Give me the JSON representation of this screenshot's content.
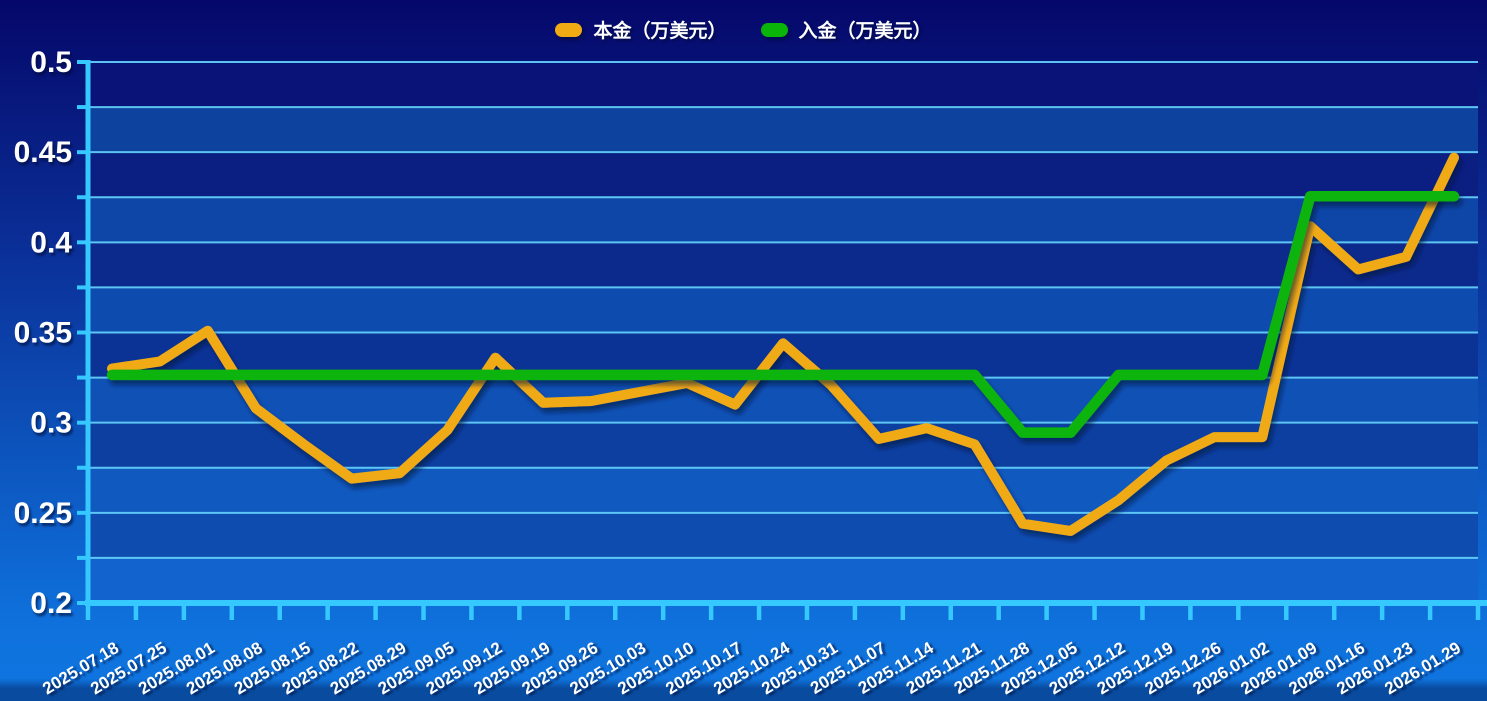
{
  "legend": {
    "items": [
      {
        "label": "本金（万美元）"
      },
      {
        "label": "入金（万美元）"
      }
    ]
  },
  "chart_data": {
    "type": "line",
    "title": "",
    "xlabel": "",
    "ylabel": "",
    "categories": [
      "2025.07.18",
      "2025.07.25",
      "2025.08.01",
      "2025.08.08",
      "2025.08.15",
      "2025.08.22",
      "2025.08.29",
      "2025.09.05",
      "2025.09.12",
      "2025.09.19",
      "2025.09.26",
      "2025.10.03",
      "2025.10.10",
      "2025.10.17",
      "2025.10.24",
      "2025.10.31",
      "2025.11.07",
      "2025.11.14",
      "2025.11.21",
      "2025.11.28",
      "2025.12.05",
      "2025.12.12",
      "2025.12.19",
      "2025.12.26",
      "2026.01.02",
      "2026.01.09",
      "2026.01.16",
      "2026.01.23",
      "2026.01.29"
    ],
    "series": [
      {
        "name": "本金（万美元）",
        "color": "#F0AA14",
        "values": [
          0.33,
          0.334,
          0.351,
          0.308,
          0.288,
          0.269,
          0.272,
          0.296,
          0.336,
          0.311,
          0.312,
          0.317,
          0.322,
          0.31,
          0.344,
          0.321,
          0.291,
          0.297,
          0.288,
          0.244,
          0.24,
          0.257,
          0.279,
          0.292,
          0.292,
          0.409,
          0.385,
          0.392,
          0.447
        ]
      },
      {
        "name": "入金（万美元）",
        "color": "#0AB408",
        "values": [
          0.3265,
          0.3265,
          0.3265,
          0.3265,
          0.3265,
          0.3265,
          0.3265,
          0.3265,
          0.3265,
          0.3265,
          0.3265,
          0.3265,
          0.3265,
          0.3265,
          0.3265,
          0.3265,
          0.3265,
          0.3265,
          0.3265,
          0.2945,
          0.2945,
          0.3265,
          0.3265,
          0.3265,
          0.3265,
          0.4255,
          0.4255,
          0.4255,
          0.4255
        ]
      }
    ],
    "ylim": [
      0.2,
      0.5
    ],
    "ytick_labels": [
      "0.5",
      "0.45",
      "0.4",
      "0.35",
      "0.3",
      "0.25",
      "0.2"
    ],
    "minor_step": 0.025,
    "grid": true,
    "legend_position": "top-center"
  },
  "style": {
    "grid_color": "#62CDF9",
    "axis_color": "#35C9FF",
    "text_color": "#FFFFFF",
    "band_colors": [
      "#0A1478",
      "#0D429F",
      "#0B1E82",
      "#0D46A7",
      "#0C2A8C",
      "#0E4BAE",
      "#0B3396",
      "#0F51B5",
      "#0C3FA0",
      "#1059BF",
      "#0E4CB0",
      "#1263CD"
    ]
  }
}
